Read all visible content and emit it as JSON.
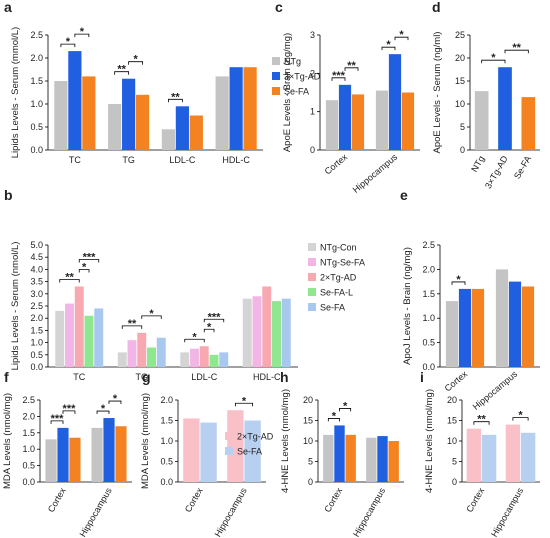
{
  "chart_data": [
    {
      "type": "bar",
      "panel": "a",
      "ylabel": "Lipids Levels - Serum (mmol/L)",
      "categories": [
        "TC",
        "TG",
        "LDL-C",
        "HDL-C"
      ],
      "series": [
        {
          "name": "NTg",
          "color": "#c4c4c4",
          "values": [
            1.5,
            1.0,
            0.45,
            1.6
          ]
        },
        {
          "name": "3×Tg-AD",
          "color": "#1f5fe0",
          "values": [
            2.15,
            1.55,
            0.95,
            1.8
          ]
        },
        {
          "name": "Se-FA",
          "color": "#f58220",
          "values": [
            1.6,
            1.2,
            0.75,
            1.8
          ]
        }
      ],
      "ylim": [
        0,
        2.5
      ],
      "yticks": [
        {
          "value": 0,
          "label": "0.0"
        },
        0.5,
        {
          "value": 1,
          "label": "1.0"
        },
        1.5,
        {
          "value": 2,
          "label": "2.0"
        },
        2.5
      ],
      "annotations": [
        "*",
        "*",
        "**",
        "*",
        "**"
      ],
      "legend": true
    },
    {
      "type": "bar",
      "panel": "c",
      "ylabel": "ApoE Levels - Brain (ng/mg)",
      "categories": [
        "Cortex",
        "Hippocampus"
      ],
      "series": [
        {
          "color": "#c4c4c4",
          "values": [
            1.3,
            1.55
          ]
        },
        {
          "color": "#1f5fe0",
          "values": [
            1.7,
            2.5
          ]
        },
        {
          "color": "#f58220",
          "values": [
            1.45,
            1.5
          ]
        }
      ],
      "ylim": [
        0,
        3
      ],
      "yticks": [
        0,
        1,
        2,
        3
      ],
      "annotations": [
        "***",
        "**",
        "*",
        "*"
      ],
      "legend": false
    },
    {
      "type": "bar",
      "panel": "d",
      "ylabel": "ApoE Levels - Serum (ng/ml)",
      "categories": [
        "NTg",
        "3×Tg-AD",
        "Se-FA"
      ],
      "values": [
        12.8,
        18,
        11.5
      ],
      "colors": [
        "#c4c4c4",
        "#1f5fe0",
        "#f58220"
      ],
      "ylim": [
        0,
        25
      ],
      "yticks": [
        0,
        5,
        10,
        15,
        20,
        25
      ],
      "annotations": [
        "*",
        "**"
      ],
      "legend": false
    },
    {
      "type": "bar",
      "panel": "b",
      "ylabel": "Lipids Levels - Serum (nmol/L)",
      "categories": [
        "TC",
        "TG",
        "LDL-C",
        "HDL-C"
      ],
      "series": [
        {
          "name": "NTg-Con",
          "color": "#d4d4d4",
          "values": [
            2.3,
            0.6,
            0.6,
            2.8
          ]
        },
        {
          "name": "NTg-Se-FA",
          "color": "#f2b6e6",
          "values": [
            2.6,
            1.1,
            0.75,
            2.9
          ]
        },
        {
          "name": "2×Tg-AD",
          "color": "#f7a8b0",
          "values": [
            3.3,
            1.4,
            0.85,
            3.3
          ]
        },
        {
          "name": "Se-FA-L",
          "color": "#8fe88f",
          "values": [
            2.1,
            0.8,
            0.5,
            2.7
          ]
        },
        {
          "name": "Se-FA",
          "color": "#a9c8f0",
          "values": [
            2.4,
            1.2,
            0.6,
            2.8
          ]
        }
      ],
      "ylim": [
        0,
        5
      ],
      "yticks": [
        {
          "value": 0,
          "label": "0.0"
        },
        0.5,
        {
          "value": 1,
          "label": "1.0"
        },
        1.5,
        {
          "value": 2,
          "label": "2.0"
        },
        2.5,
        {
          "value": 3,
          "label": "3.0"
        },
        3.5,
        {
          "value": 4,
          "label": "4.0"
        },
        4.5,
        {
          "value": 5,
          "label": "5.0"
        }
      ],
      "annotations": [
        "**",
        "***",
        "*",
        "**",
        "*",
        "*",
        "***",
        "*"
      ],
      "legend": true
    },
    {
      "type": "bar",
      "panel": "e",
      "ylabel": "ApoJ Levels - Brain (ng/mg)",
      "categories": [
        "Cortex",
        "Hippocampus"
      ],
      "series": [
        {
          "color": "#c4c4c4",
          "values": [
            1.35,
            2.0
          ]
        },
        {
          "color": "#1f5fe0",
          "values": [
            1.6,
            1.75
          ]
        },
        {
          "color": "#f58220",
          "values": [
            1.6,
            1.65
          ]
        }
      ],
      "ylim": [
        0,
        2.5
      ],
      "yticks": [
        {
          "value": 0,
          "label": "0.0"
        },
        0.5,
        {
          "value": 1,
          "label": "1.0"
        },
        1.5,
        {
          "value": 2,
          "label": "2.0"
        },
        2.5
      ],
      "annotations": [
        "*"
      ],
      "legend": false
    },
    {
      "type": "bar",
      "panel": "f",
      "ylabel": "MDA Levels (nmol/mg)",
      "categories": [
        "Cortex",
        "Hippocampus"
      ],
      "series": [
        {
          "color": "#c4c4c4",
          "values": [
            1.3,
            1.65
          ]
        },
        {
          "color": "#1f5fe0",
          "values": [
            1.65,
            1.95
          ]
        },
        {
          "color": "#f58220",
          "values": [
            1.35,
            1.7
          ]
        }
      ],
      "ylim": [
        0,
        2.5
      ],
      "yticks": [
        {
          "value": 0,
          "label": "0.0"
        },
        0.5,
        {
          "value": 1,
          "label": "1.0"
        },
        1.5,
        {
          "value": 2,
          "label": "2.0"
        },
        2.5
      ],
      "annotations": [
        "***",
        "***",
        "*",
        "*"
      ],
      "legend": false
    },
    {
      "type": "bar",
      "panel": "g",
      "ylabel": "MDA Levels (nmol/mg)",
      "categories": [
        "Cortex",
        "Hippocampus"
      ],
      "series": [
        {
          "name": "2×Tg-AD",
          "color": "#f9c0c8",
          "values": [
            1.55,
            1.75
          ]
        },
        {
          "name": "Se-FA",
          "color": "#b8d0f0",
          "values": [
            1.45,
            1.5
          ]
        }
      ],
      "ylim": [
        0,
        2
      ],
      "yticks": [
        {
          "value": 0,
          "label": "0.0"
        },
        0.5,
        {
          "value": 1,
          "label": "1.0"
        },
        1.5,
        {
          "value": 2,
          "label": "2.0"
        }
      ],
      "annotations": [
        "*"
      ],
      "legend": true
    },
    {
      "type": "bar",
      "panel": "h",
      "ylabel": "4-HNE Levels (nmol/mg)",
      "categories": [
        "Cortex",
        "Hippocampus"
      ],
      "series": [
        {
          "color": "#c4c4c4",
          "values": [
            11.5,
            10.8
          ]
        },
        {
          "color": "#1f5fe0",
          "values": [
            13.8,
            11.2
          ]
        },
        {
          "color": "#f58220",
          "values": [
            11.5,
            10
          ]
        }
      ],
      "ylim": [
        0,
        20
      ],
      "yticks": [
        0,
        5,
        10,
        15,
        20
      ],
      "annotations": [
        "*",
        "*"
      ],
      "legend": false
    },
    {
      "type": "bar",
      "panel": "i",
      "ylabel": "4-HNE Levels (nmol/mg)",
      "categories": [
        "Cortex",
        "Hippocampus"
      ],
      "series": [
        {
          "color": "#f9c0c8",
          "values": [
            13,
            14
          ]
        },
        {
          "color": "#b8d0f0",
          "values": [
            11.5,
            12
          ]
        }
      ],
      "ylim": [
        0,
        20
      ],
      "yticks": [
        0,
        5,
        10,
        15,
        20
      ],
      "annotations": [
        "**",
        "*"
      ],
      "legend": false
    }
  ]
}
